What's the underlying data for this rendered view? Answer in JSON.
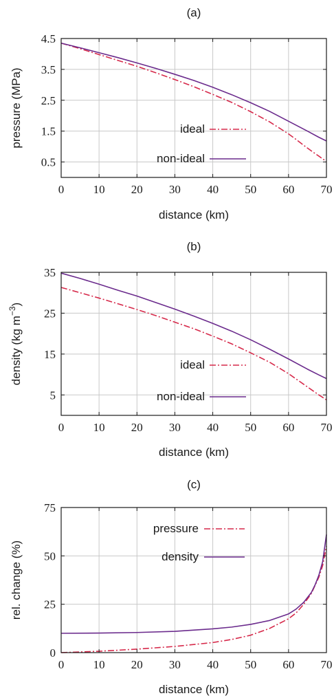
{
  "chart_data": [
    {
      "type": "line",
      "title": "(a)",
      "xlabel": "distance (km)",
      "ylabel": "pressure (MPa)",
      "ylabel_sup": "",
      "ylabel_end": "",
      "xlim": [
        0,
        70
      ],
      "ylim": [
        0,
        4.5
      ],
      "xticks": [
        0,
        10,
        20,
        30,
        40,
        50,
        60,
        70
      ],
      "yticks": [
        0.5,
        1.5,
        2.5,
        3.5,
        4.5
      ],
      "ytick_labels": [
        "0.5",
        "1.5",
        "2.5",
        "3.5",
        "4.5"
      ],
      "grid": true,
      "legend_position": "bottom-right",
      "series": [
        {
          "name": "ideal",
          "color": "#d6294a",
          "dash": "dashdot",
          "x": [
            0,
            5,
            10,
            15,
            20,
            25,
            30,
            35,
            40,
            45,
            50,
            55,
            60,
            62,
            64,
            66,
            68,
            69,
            70
          ],
          "y": [
            4.35,
            4.17,
            3.98,
            3.79,
            3.6,
            3.39,
            3.17,
            2.94,
            2.69,
            2.43,
            2.13,
            1.8,
            1.41,
            1.23,
            1.04,
            0.86,
            0.69,
            0.6,
            0.52
          ]
        },
        {
          "name": "non-ideal",
          "color": "#6a2a8c",
          "dash": "solid",
          "x": [
            0,
            5,
            10,
            15,
            20,
            25,
            30,
            35,
            40,
            45,
            50,
            55,
            60,
            65,
            68,
            70
          ],
          "y": [
            4.35,
            4.2,
            4.04,
            3.88,
            3.71,
            3.53,
            3.34,
            3.14,
            2.92,
            2.68,
            2.42,
            2.14,
            1.82,
            1.5,
            1.3,
            1.18
          ]
        }
      ]
    },
    {
      "type": "line",
      "title": "(b)",
      "xlabel": "distance (km)",
      "ylabel": "density (kg m",
      "ylabel_sup": "−3",
      "ylabel_end": ")",
      "xlim": [
        0,
        70
      ],
      "ylim": [
        0,
        35
      ],
      "xticks": [
        0,
        10,
        20,
        30,
        40,
        50,
        60,
        70
      ],
      "yticks": [
        5,
        15,
        25,
        35
      ],
      "ytick_labels": [
        "5",
        "15",
        "25",
        "35"
      ],
      "grid": true,
      "legend_position": "bottom-right",
      "series": [
        {
          "name": "ideal",
          "color": "#d6294a",
          "dash": "dashdot",
          "x": [
            0,
            5,
            10,
            15,
            20,
            25,
            30,
            35,
            40,
            45,
            50,
            55,
            60,
            62,
            64,
            66,
            68,
            69,
            70
          ],
          "y": [
            31.3,
            30.0,
            28.7,
            27.3,
            25.9,
            24.4,
            22.8,
            21.2,
            19.4,
            17.5,
            15.3,
            13.0,
            10.2,
            8.9,
            7.6,
            6.3,
            5.0,
            4.4,
            3.8
          ]
        },
        {
          "name": "non-ideal",
          "color": "#6a2a8c",
          "dash": "solid",
          "x": [
            0,
            5,
            10,
            15,
            20,
            25,
            30,
            35,
            40,
            45,
            50,
            55,
            60,
            65,
            68,
            70
          ],
          "y": [
            34.8,
            33.5,
            32.1,
            30.6,
            29.2,
            27.6,
            26.0,
            24.3,
            22.5,
            20.6,
            18.5,
            16.2,
            13.8,
            11.3,
            9.9,
            9.0
          ]
        }
      ]
    },
    {
      "type": "line",
      "title": "(c)",
      "xlabel": "distance (km)",
      "ylabel": "rel. change (%)",
      "ylabel_sup": "",
      "ylabel_end": "",
      "xlim": [
        0,
        70
      ],
      "ylim": [
        0,
        75
      ],
      "xticks": [
        0,
        10,
        20,
        30,
        40,
        50,
        60,
        70
      ],
      "yticks": [
        0,
        25,
        50,
        75
      ],
      "ytick_labels": [
        "0",
        "25",
        "50",
        "75"
      ],
      "grid": true,
      "legend_position": "top-center",
      "series": [
        {
          "name": "pressure",
          "color": "#d6294a",
          "dash": "dashdot",
          "x": [
            0,
            10,
            20,
            30,
            40,
            45,
            50,
            55,
            60,
            62,
            64,
            66,
            68,
            69,
            70
          ],
          "y": [
            0,
            0.7,
            1.8,
            3.2,
            5.2,
            6.8,
            9.0,
            12.5,
            17.5,
            20.5,
            25.0,
            30.5,
            39.0,
            45.0,
            55.0
          ]
        },
        {
          "name": "density",
          "color": "#6a2a8c",
          "dash": "solid",
          "x": [
            0,
            10,
            20,
            30,
            40,
            45,
            50,
            55,
            60,
            62,
            64,
            66,
            67,
            68,
            69,
            70
          ],
          "y": [
            10.0,
            10.1,
            10.4,
            11.0,
            12.3,
            13.2,
            14.6,
            16.6,
            20.0,
            22.5,
            26.0,
            31.0,
            35.0,
            40.0,
            47.0,
            61.0
          ]
        }
      ]
    }
  ]
}
